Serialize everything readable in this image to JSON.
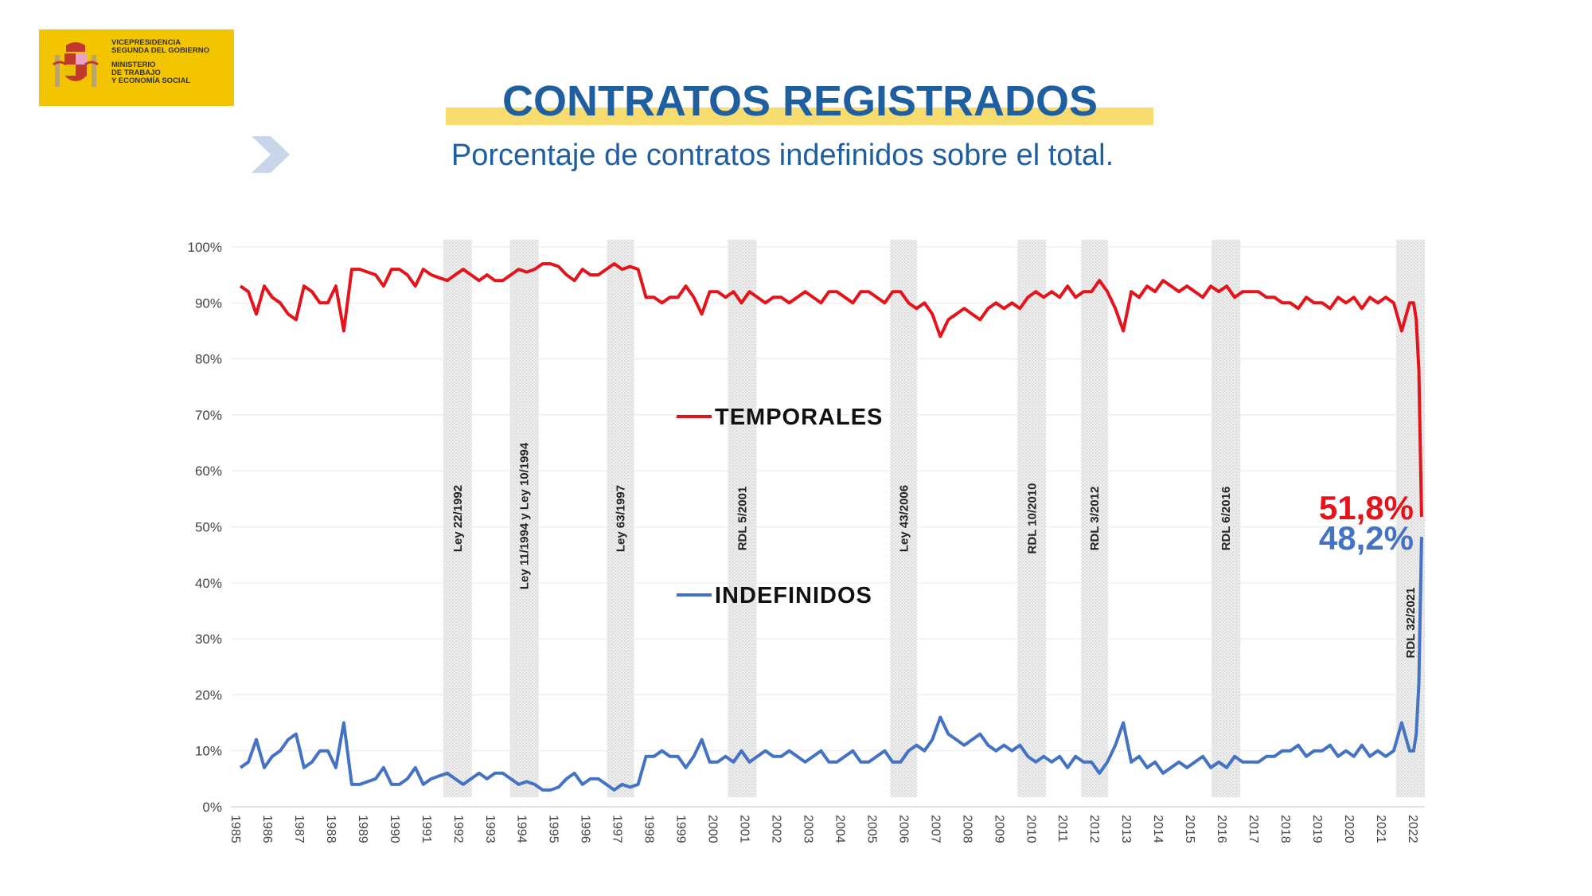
{
  "logo": {
    "line1": "VICEPRESIDENCIA",
    "line2": "SEGUNDA DEL GOBIERNO",
    "line3": "MINISTERIO",
    "line4": "DE TRABAJO",
    "line5": "Y ECONOMÍA SOCIAL",
    "color": "#f2c500"
  },
  "header": {
    "title": "CONTRATOS REGISTRADOS",
    "subtitle": "Porcentaje de contratos indefinidos sobre el total.",
    "accent": "#1f5fa0",
    "icon": "chevron-right-icon"
  },
  "chart_data": {
    "type": "line",
    "title": "",
    "xlabel": "",
    "ylabel": "",
    "ylim": [
      0,
      100
    ],
    "yticks": [
      "0%",
      "10%",
      "20%",
      "30%",
      "40%",
      "50%",
      "60%",
      "70%",
      "80%",
      "90%",
      "100%"
    ],
    "xticks": [
      "1985",
      "1986",
      "1987",
      "1988",
      "1989",
      "1990",
      "1991",
      "1992",
      "1993",
      "1994",
      "1995",
      "1996",
      "1997",
      "1998",
      "1999",
      "2000",
      "2001",
      "2002",
      "2003",
      "2004",
      "2005",
      "2006",
      "2007",
      "2008",
      "2009",
      "2010",
      "2011",
      "2012",
      "2013",
      "2014",
      "2015",
      "2016",
      "2017",
      "2018",
      "2019",
      "2020",
      "2021",
      "2022"
    ],
    "xlim": [
      1985,
      2022.4
    ],
    "grid": true,
    "legend_placement": "center-left",
    "series": [
      {
        "name": "TEMPORALES",
        "color": "#e3141b",
        "end_label": "51,8%",
        "values_by_year_quarterly": {
          "1985": [
            93,
            92,
            88,
            93
          ],
          "1986": [
            91,
            90,
            88,
            87
          ],
          "1987": [
            93,
            92,
            90,
            90
          ],
          "1988": [
            93,
            85,
            96,
            96
          ],
          "1989": [
            95.5,
            95,
            93,
            96
          ],
          "1990": [
            96,
            95,
            93,
            96
          ],
          "1991": [
            95,
            94.5,
            94,
            95
          ],
          "1992": [
            96,
            95,
            94,
            95
          ],
          "1993": [
            94,
            94,
            95,
            96
          ],
          "1994": [
            95.5,
            96,
            97,
            97
          ],
          "1995": [
            96.5,
            95,
            94,
            96
          ],
          "1996": [
            95,
            95,
            96,
            97
          ],
          "1997": [
            96,
            96.5,
            96,
            91
          ],
          "1998": [
            91,
            90,
            91,
            91
          ],
          "1999": [
            93,
            91,
            88,
            92
          ],
          "2000": [
            92,
            91,
            92,
            90
          ],
          "2001": [
            92,
            91,
            90,
            91
          ],
          "2002": [
            91,
            90,
            91,
            92
          ],
          "2003": [
            91,
            90,
            92,
            92
          ],
          "2004": [
            91,
            90,
            92,
            92
          ],
          "2005": [
            91,
            90,
            92,
            92
          ],
          "2006": [
            90,
            89,
            90,
            88
          ],
          "2007": [
            84,
            87,
            88,
            89
          ],
          "2008": [
            88,
            87,
            89,
            90
          ],
          "2009": [
            89,
            90,
            89,
            91
          ],
          "2010": [
            92,
            91,
            92,
            91
          ],
          "2011": [
            93,
            91,
            92,
            92
          ],
          "2012": [
            94,
            92,
            89,
            85
          ],
          "2013": [
            92,
            91,
            93,
            92
          ],
          "2014": [
            94,
            93,
            92,
            93
          ],
          "2015": [
            92,
            91,
            93,
            92
          ],
          "2016": [
            93,
            91,
            92,
            92
          ],
          "2017": [
            92,
            91,
            91,
            90
          ],
          "2018": [
            90,
            89,
            91,
            90
          ],
          "2019": [
            90,
            89,
            91,
            90
          ],
          "2020": [
            91,
            89,
            91,
            90
          ],
          "2021": [
            91,
            90,
            85,
            90
          ],
          "2022": [
            90,
            87,
            78,
            51.8
          ]
        }
      },
      {
        "name": "INDEFINIDOS",
        "color": "#4472c4",
        "end_label": "48,2%",
        "values_by_year_quarterly": {
          "1985": [
            7,
            8,
            12,
            7
          ],
          "1986": [
            9,
            10,
            12,
            13
          ],
          "1987": [
            7,
            8,
            10,
            10
          ],
          "1988": [
            7,
            15,
            4,
            4
          ],
          "1989": [
            4.5,
            5,
            7,
            4
          ],
          "1990": [
            4,
            5,
            7,
            4
          ],
          "1991": [
            5,
            5.5,
            6,
            5
          ],
          "1992": [
            4,
            5,
            6,
            5
          ],
          "1993": [
            6,
            6,
            5,
            4
          ],
          "1994": [
            4.5,
            4,
            3,
            3
          ],
          "1995": [
            3.5,
            5,
            6,
            4
          ],
          "1996": [
            5,
            5,
            4,
            3
          ],
          "1997": [
            4,
            3.5,
            4,
            9
          ],
          "1998": [
            9,
            10,
            9,
            9
          ],
          "1999": [
            7,
            9,
            12,
            8
          ],
          "2000": [
            8,
            9,
            8,
            10
          ],
          "2001": [
            8,
            9,
            10,
            9
          ],
          "2002": [
            9,
            10,
            9,
            8
          ],
          "2003": [
            9,
            10,
            8,
            8
          ],
          "2004": [
            9,
            10,
            8,
            8
          ],
          "2005": [
            9,
            10,
            8,
            8
          ],
          "2006": [
            10,
            11,
            10,
            12
          ],
          "2007": [
            16,
            13,
            12,
            11
          ],
          "2008": [
            12,
            13,
            11,
            10
          ],
          "2009": [
            11,
            10,
            11,
            9
          ],
          "2010": [
            8,
            9,
            8,
            9
          ],
          "2011": [
            7,
            9,
            8,
            8
          ],
          "2012": [
            6,
            8,
            11,
            15
          ],
          "2013": [
            8,
            9,
            7,
            8
          ],
          "2014": [
            6,
            7,
            8,
            7
          ],
          "2015": [
            8,
            9,
            7,
            8
          ],
          "2016": [
            7,
            9,
            8,
            8
          ],
          "2017": [
            8,
            9,
            9,
            10
          ],
          "2018": [
            10,
            11,
            9,
            10
          ],
          "2019": [
            10,
            11,
            9,
            10
          ],
          "2020": [
            9,
            11,
            9,
            10
          ],
          "2021": [
            9,
            10,
            15,
            10
          ],
          "2022": [
            10,
            13,
            22,
            48.2
          ]
        }
      }
    ],
    "annotations": [
      {
        "label": "Ley  22/1992",
        "start": 1991.5,
        "end": 1992.4
      },
      {
        "label": "Ley 11/1994 y Ley 10/1994",
        "start": 1993.6,
        "end": 1994.5
      },
      {
        "label": "Ley 63/1997",
        "start": 1996.65,
        "end": 1997.5
      },
      {
        "label": "RDL  5/2001",
        "start": 2000.45,
        "end": 2001.35
      },
      {
        "label": "Ley 43/2006",
        "start": 2005.55,
        "end": 2006.4
      },
      {
        "label": "RDL 10/2010",
        "start": 2009.55,
        "end": 2010.45
      },
      {
        "label": "RDL 3/2012",
        "start": 2011.55,
        "end": 2012.4
      },
      {
        "label": "RDL 6/2016",
        "start": 2015.65,
        "end": 2016.55
      },
      {
        "label": "RDL 32/2021",
        "start": 2021.45,
        "end": 2022.35
      }
    ]
  }
}
